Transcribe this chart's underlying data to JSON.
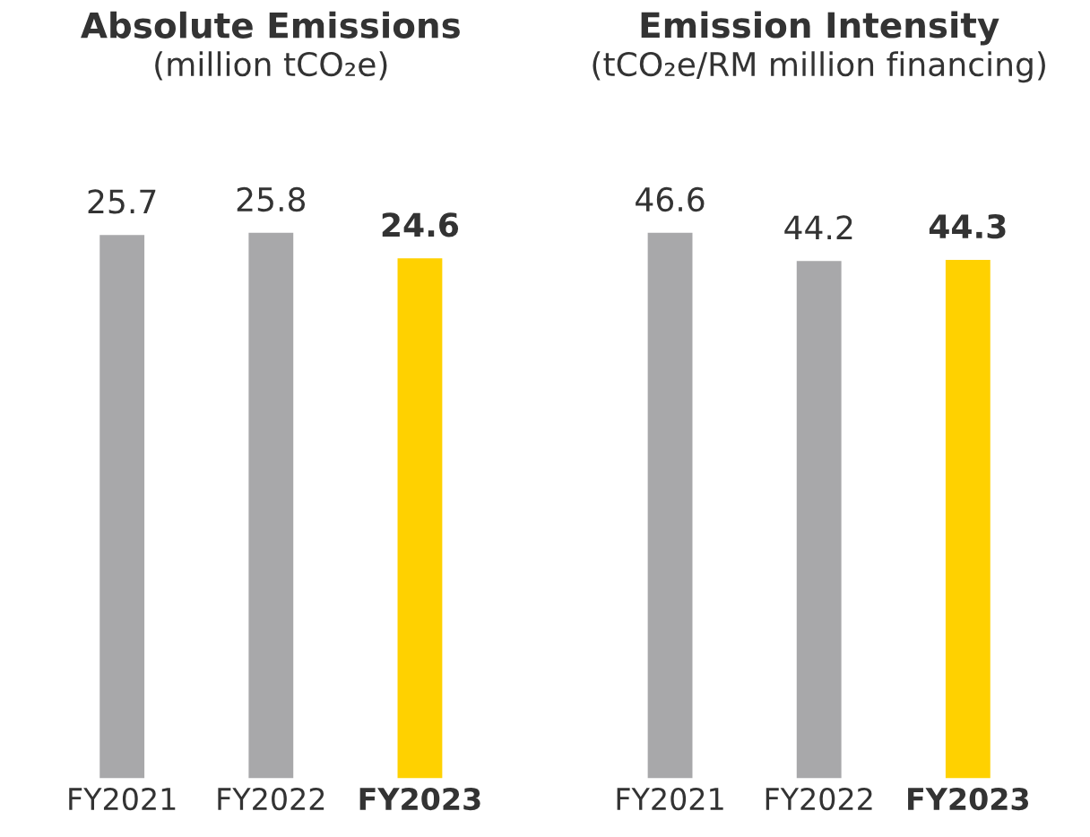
{
  "chart_data": [
    {
      "type": "bar",
      "title": "Absolute Emissions",
      "subtitle": "(million tCO₂e)",
      "categories": [
        "FY2021",
        "FY2022",
        "FY2023"
      ],
      "values": [
        25.7,
        25.8,
        24.6
      ],
      "colors": [
        "#a8a8aa",
        "#a8a8aa",
        "#ffd100"
      ],
      "data_labels": true
    },
    {
      "type": "bar",
      "title": "Emission Intensity",
      "subtitle": "(tCO₂e/RM million financing)",
      "categories": [
        "FY2021",
        "FY2022",
        "FY2023"
      ],
      "values": [
        46.6,
        44.2,
        44.3
      ],
      "colors": [
        "#a8a8aa",
        "#a8a8aa",
        "#ffd100"
      ],
      "data_labels": true
    }
  ]
}
